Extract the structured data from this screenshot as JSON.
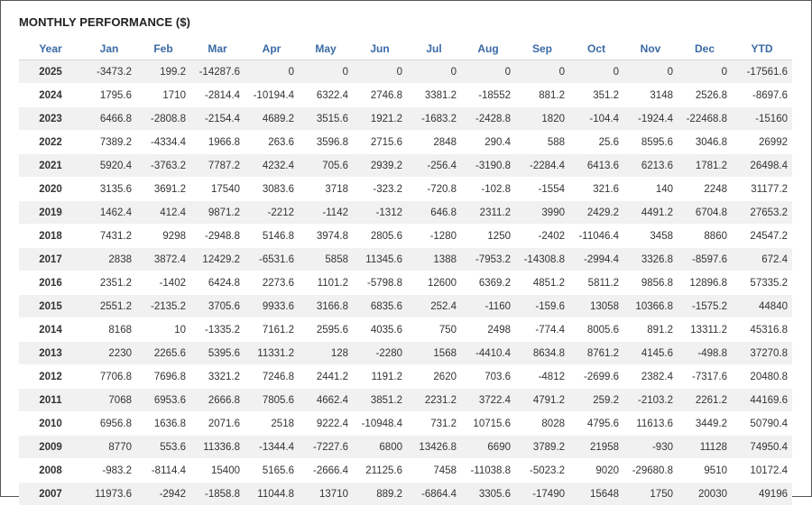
{
  "title": "MONTHLY PERFORMANCE ($)",
  "columns": [
    "Year",
    "Jan",
    "Feb",
    "Mar",
    "Apr",
    "May",
    "Jun",
    "Jul",
    "Aug",
    "Sep",
    "Oct",
    "Nov",
    "Dec",
    "YTD"
  ],
  "colors": {
    "header": "#3a6aa5",
    "negative": "#e8484f",
    "text": "#333333",
    "stripe": "#f1f1f1"
  },
  "rows": [
    [
      "2025",
      "-3473.2",
      "199.2",
      "-14287.6",
      "0",
      "0",
      "0",
      "0",
      "0",
      "0",
      "0",
      "0",
      "0",
      "-17561.6"
    ],
    [
      "2024",
      "1795.6",
      "1710",
      "-2814.4",
      "-10194.4",
      "6322.4",
      "2746.8",
      "3381.2",
      "-18552",
      "881.2",
      "351.2",
      "3148",
      "2526.8",
      "-8697.6"
    ],
    [
      "2023",
      "6466.8",
      "-2808.8",
      "-2154.4",
      "4689.2",
      "3515.6",
      "1921.2",
      "-1683.2",
      "-2428.8",
      "1820",
      "-104.4",
      "-1924.4",
      "-22468.8",
      "-15160"
    ],
    [
      "2022",
      "7389.2",
      "-4334.4",
      "1966.8",
      "263.6",
      "3596.8",
      "2715.6",
      "2848",
      "290.4",
      "588",
      "25.6",
      "8595.6",
      "3046.8",
      "26992"
    ],
    [
      "2021",
      "5920.4",
      "-3763.2",
      "7787.2",
      "4232.4",
      "705.6",
      "2939.2",
      "-256.4",
      "-3190.8",
      "-2284.4",
      "6413.6",
      "6213.6",
      "1781.2",
      "26498.4"
    ],
    [
      "2020",
      "3135.6",
      "3691.2",
      "17540",
      "3083.6",
      "3718",
      "-323.2",
      "-720.8",
      "-102.8",
      "-1554",
      "321.6",
      "140",
      "2248",
      "31177.2"
    ],
    [
      "2019",
      "1462.4",
      "412.4",
      "9871.2",
      "-2212",
      "-1142",
      "-1312",
      "646.8",
      "2311.2",
      "3990",
      "2429.2",
      "4491.2",
      "6704.8",
      "27653.2"
    ],
    [
      "2018",
      "7431.2",
      "9298",
      "-2948.8",
      "5146.8",
      "3974.8",
      "2805.6",
      "-1280",
      "1250",
      "-2402",
      "-11046.4",
      "3458",
      "8860",
      "24547.2"
    ],
    [
      "2017",
      "2838",
      "3872.4",
      "12429.2",
      "-6531.6",
      "5858",
      "11345.6",
      "1388",
      "-7953.2",
      "-14308.8",
      "-2994.4",
      "3326.8",
      "-8597.6",
      "672.4"
    ],
    [
      "2016",
      "2351.2",
      "-1402",
      "6424.8",
      "2273.6",
      "1101.2",
      "-5798.8",
      "12600",
      "6369.2",
      "4851.2",
      "5811.2",
      "9856.8",
      "12896.8",
      "57335.2"
    ],
    [
      "2015",
      "2551.2",
      "-2135.2",
      "3705.6",
      "9933.6",
      "3166.8",
      "6835.6",
      "252.4",
      "-1160",
      "-159.6",
      "13058",
      "10366.8",
      "-1575.2",
      "44840"
    ],
    [
      "2014",
      "8168",
      "10",
      "-1335.2",
      "7161.2",
      "2595.6",
      "4035.6",
      "750",
      "2498",
      "-774.4",
      "8005.6",
      "891.2",
      "13311.2",
      "45316.8"
    ],
    [
      "2013",
      "2230",
      "2265.6",
      "5395.6",
      "11331.2",
      "128",
      "-2280",
      "1568",
      "-4410.4",
      "8634.8",
      "8761.2",
      "4145.6",
      "-498.8",
      "37270.8"
    ],
    [
      "2012",
      "7706.8",
      "7696.8",
      "3321.2",
      "7246.8",
      "2441.2",
      "1191.2",
      "2620",
      "703.6",
      "-4812",
      "-2699.6",
      "2382.4",
      "-7317.6",
      "20480.8"
    ],
    [
      "2011",
      "7068",
      "6953.6",
      "2666.8",
      "7805.6",
      "4662.4",
      "3851.2",
      "2231.2",
      "3722.4",
      "4791.2",
      "259.2",
      "-2103.2",
      "2261.2",
      "44169.6"
    ],
    [
      "2010",
      "6956.8",
      "1636.8",
      "2071.6",
      "2518",
      "9222.4",
      "-10948.4",
      "731.2",
      "10715.6",
      "8028",
      "4795.6",
      "11613.6",
      "3449.2",
      "50790.4"
    ],
    [
      "2009",
      "8770",
      "553.6",
      "11336.8",
      "-1344.4",
      "-7227.6",
      "6800",
      "13426.8",
      "6690",
      "3789.2",
      "21958",
      "-930",
      "11128",
      "74950.4"
    ],
    [
      "2008",
      "-983.2",
      "-8114.4",
      "15400",
      "5165.6",
      "-2666.4",
      "21125.6",
      "7458",
      "-11038.8",
      "-5023.2",
      "9020",
      "-29680.8",
      "9510",
      "10172.4"
    ],
    [
      "2007",
      "11973.6",
      "-2942",
      "-1858.8",
      "11044.8",
      "13710",
      "889.2",
      "-6864.4",
      "3305.6",
      "-17490",
      "15648",
      "1750",
      "20030",
      "49196"
    ]
  ]
}
